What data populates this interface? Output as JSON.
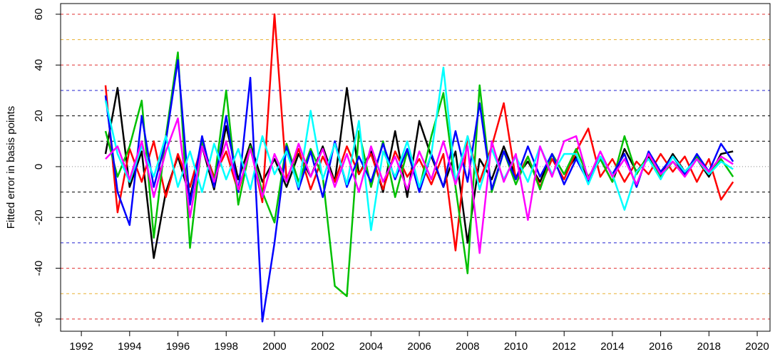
{
  "chart_data": {
    "type": "line",
    "y_label": "Fitted error in basis points",
    "xlim": [
      1991.14,
      2020.53
    ],
    "ylim": [
      -64.8,
      64.2
    ],
    "xticks": [
      1992,
      1994,
      1996,
      1998,
      2000,
      2002,
      2004,
      2006,
      2008,
      2010,
      2012,
      2014,
      2016,
      2018,
      2020
    ],
    "yticks": [
      -60,
      -40,
      -20,
      0,
      20,
      40,
      60
    ],
    "hlines": [
      {
        "value": 60,
        "color": "#e03030",
        "style": "dashed"
      },
      {
        "value": 50,
        "color": "#e8b030",
        "style": "dashed"
      },
      {
        "value": 40,
        "color": "#e03030",
        "style": "dashed"
      },
      {
        "value": 30,
        "color": "#2020d0",
        "style": "dashed"
      },
      {
        "value": 20,
        "color": "#000000",
        "style": "dashed"
      },
      {
        "value": 10,
        "color": "#000000",
        "style": "dashed"
      },
      {
        "value": 0,
        "color": "#888888",
        "style": "dotted"
      },
      {
        "value": -10,
        "color": "#000000",
        "style": "dashed"
      },
      {
        "value": -20,
        "color": "#000000",
        "style": "dashed"
      },
      {
        "value": -30,
        "color": "#2020d0",
        "style": "dashed"
      },
      {
        "value": -40,
        "color": "#e03030",
        "style": "dashed"
      },
      {
        "value": -50,
        "color": "#e8b030",
        "style": "dashed"
      },
      {
        "value": -60,
        "color": "#e03030",
        "style": "dashed"
      }
    ],
    "x": [
      1993,
      1993.5,
      1994,
      1994.5,
      1995,
      1995.5,
      1996,
      1996.5,
      1997,
      1997.5,
      1998,
      1998.5,
      1999,
      1999.5,
      2000,
      2000.5,
      2001,
      2001.5,
      2002,
      2002.5,
      2003,
      2003.5,
      2004,
      2004.5,
      2005,
      2005.5,
      2006,
      2006.5,
      2007,
      2007.5,
      2008,
      2008.5,
      2009,
      2009.5,
      2010,
      2010.5,
      2011,
      2011.5,
      2012,
      2012.5,
      2013,
      2013.5,
      2014,
      2014.5,
      2015,
      2015.5,
      2016,
      2016.5,
      2017,
      2017.5,
      2018,
      2018.5,
      2019
    ],
    "series": [
      {
        "color": "#000000",
        "values": [
          5,
          31,
          -8,
          6,
          -36,
          -10,
          4,
          -12,
          8,
          -9,
          16,
          -5,
          9,
          -6,
          3,
          -8,
          5,
          -4,
          8,
          -6,
          31,
          -3,
          6,
          -10,
          14,
          -12,
          18,
          4,
          -8,
          6,
          -30,
          3,
          -5,
          8,
          -4,
          2,
          -6,
          5,
          -3,
          4,
          -5,
          3,
          -6,
          7,
          -2,
          4,
          -3,
          5,
          -2,
          3,
          -4,
          5,
          6
        ]
      },
      {
        "color": "#ff0000",
        "values": [
          32,
          -18,
          7,
          -6,
          10,
          -12,
          5,
          -8,
          9,
          -4,
          6,
          -10,
          8,
          -14,
          60,
          -5,
          7,
          -9,
          4,
          -6,
          8,
          -3,
          5,
          -9,
          6,
          -4,
          3,
          -7,
          5,
          -33,
          12,
          -6,
          8,
          25,
          -5,
          4,
          -8,
          3,
          -5,
          6,
          15,
          -4,
          3,
          -6,
          2,
          -3,
          5,
          -2,
          4,
          -6,
          3,
          -13,
          -6
        ]
      },
      {
        "color": "#00c000",
        "values": [
          14,
          -4,
          8,
          26,
          -28,
          12,
          45,
          -32,
          10,
          -6,
          30,
          -15,
          8,
          -10,
          -22,
          9,
          -6,
          7,
          -4,
          -47,
          -51,
          14,
          -8,
          10,
          -12,
          6,
          -9,
          12,
          29,
          -8,
          -42,
          32,
          -10,
          6,
          -7,
          4,
          -9,
          5,
          -3,
          7,
          -4,
          3,
          -6,
          12,
          -3,
          5,
          -4,
          2,
          -3,
          4,
          -2,
          3,
          -4
        ]
      },
      {
        "color": "#0000ff",
        "values": [
          28,
          -10,
          -23,
          20,
          -8,
          10,
          42,
          -15,
          12,
          -8,
          20,
          -10,
          35,
          -61,
          -30,
          8,
          -9,
          6,
          -12,
          10,
          -8,
          4,
          -6,
          9,
          -5,
          7,
          -10,
          5,
          -8,
          14,
          -6,
          25,
          -9,
          6,
          -5,
          8,
          -4,
          5,
          -7,
          3,
          -6,
          4,
          -3,
          5,
          -8,
          6,
          -2,
          4,
          -3,
          5,
          -2,
          9,
          2
        ]
      },
      {
        "color": "#00ffff",
        "values": [
          26,
          5,
          -6,
          8,
          -4,
          12,
          -8,
          6,
          -10,
          9,
          -5,
          7,
          -9,
          12,
          -3,
          6,
          -8,
          22,
          -5,
          9,
          -7,
          18,
          -25,
          6,
          -4,
          10,
          -8,
          5,
          39,
          -6,
          12,
          -9,
          7,
          -5,
          4,
          -6,
          8,
          -3,
          5,
          5,
          -7,
          4,
          -3,
          -17,
          -2,
          3,
          -5,
          4,
          -2,
          3,
          -3,
          2,
          -1
        ]
      },
      {
        "color": "#ff00ff",
        "values": [
          3,
          8,
          -5,
          10,
          -12,
          6,
          19,
          -20,
          8,
          -6,
          10,
          -9,
          7,
          -12,
          5,
          -6,
          9,
          -4,
          7,
          -8,
          5,
          -10,
          8,
          -6,
          4,
          -9,
          6,
          -5,
          10,
          -7,
          8,
          -34,
          10,
          -6,
          5,
          -21,
          8,
          -4,
          10,
          12,
          -5,
          6,
          -4,
          3,
          -7,
          5,
          -3,
          2,
          -4,
          3,
          -2,
          4,
          1
        ]
      }
    ]
  }
}
